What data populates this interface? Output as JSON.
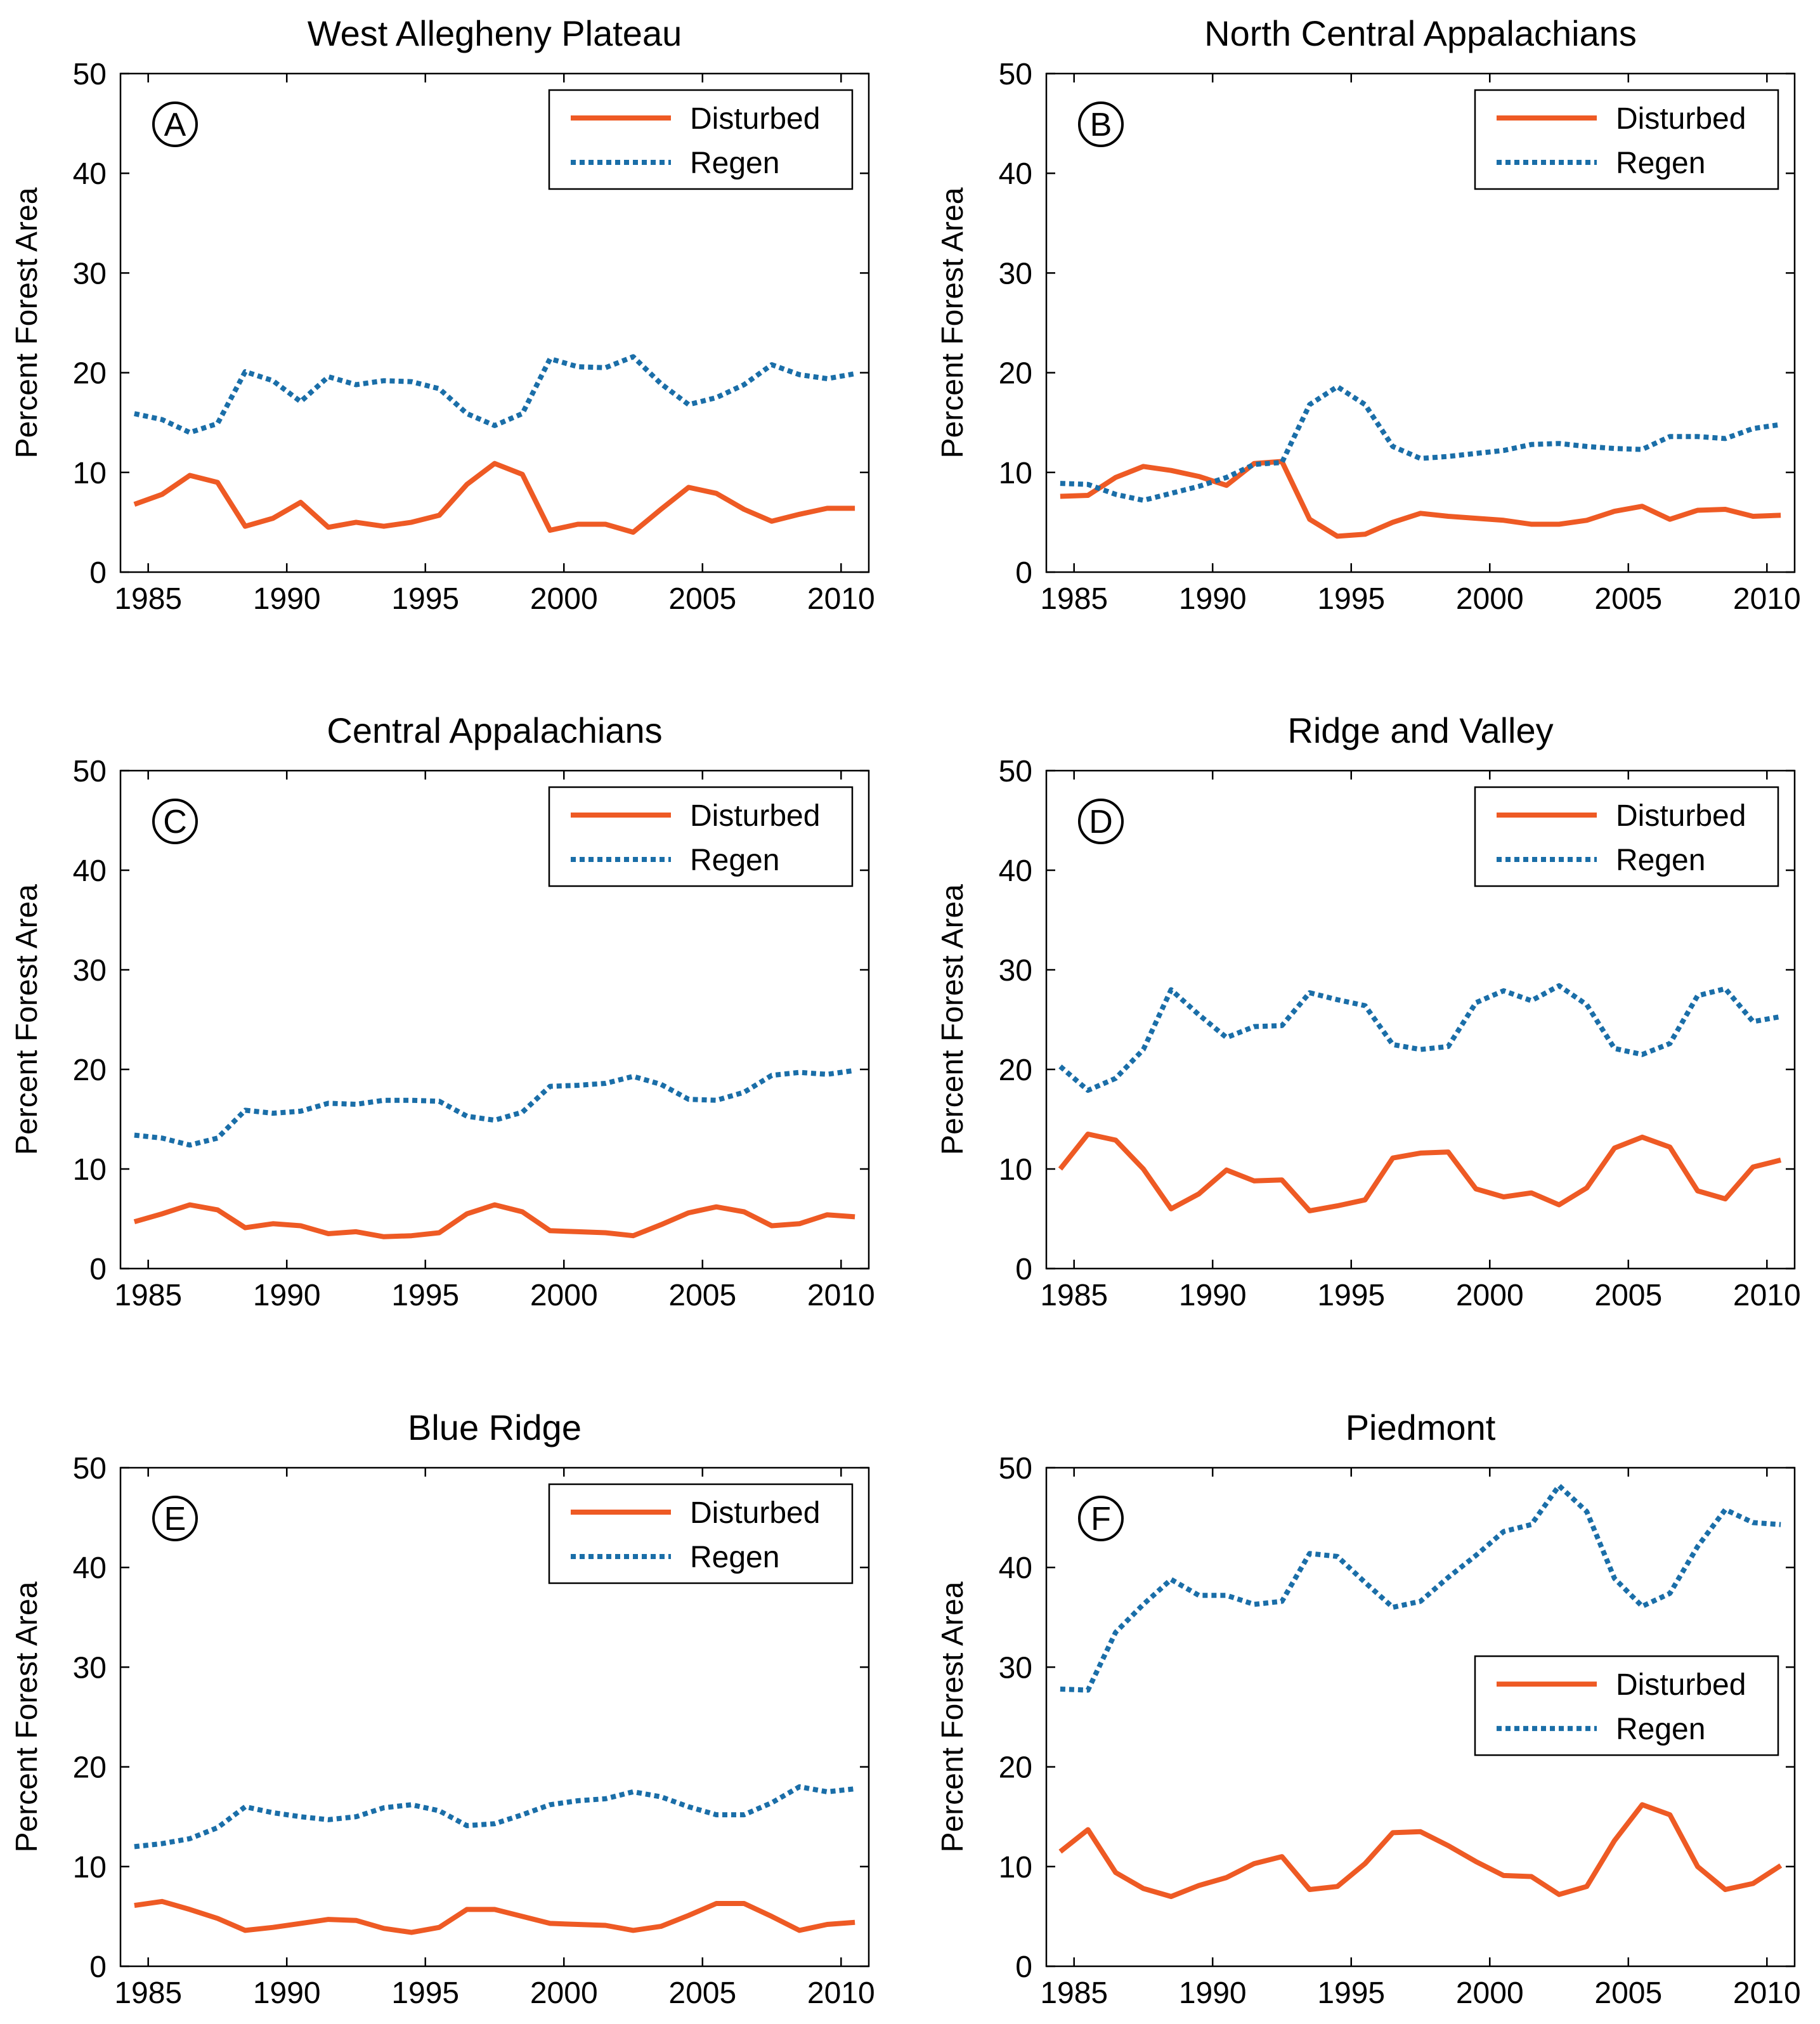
{
  "colors": {
    "disturbed": "#ee5a24",
    "regen": "#1a6ea8"
  },
  "chart_data": [
    {
      "type": "line",
      "panel": "A",
      "title": "West Allegheny Plateau",
      "ylabel": "Percent Forest Area",
      "xlim": [
        1984,
        2011
      ],
      "ylim": [
        0,
        50
      ],
      "xticks": [
        1985,
        1990,
        1995,
        2000,
        2005,
        2010
      ],
      "yticks": [
        0,
        10,
        20,
        30,
        40,
        50
      ],
      "legend": {
        "position": "top-right",
        "entries": [
          "Disturbed",
          "Regen"
        ]
      },
      "x": [
        1984.5,
        1985.5,
        1986.5,
        1987.5,
        1988.5,
        1989.5,
        1990.5,
        1991.5,
        1992.5,
        1993.5,
        1994.5,
        1995.5,
        1996.5,
        1997.5,
        1998.5,
        1999.5,
        2000.5,
        2001.5,
        2002.5,
        2003.5,
        2004.5,
        2005.5,
        2006.5,
        2007.5,
        2008.5,
        2009.5,
        2010.5
      ],
      "series": [
        {
          "name": "Disturbed",
          "style": "solid",
          "values": [
            6.8,
            7.8,
            9.7,
            9.0,
            4.6,
            5.4,
            7.0,
            4.5,
            5.0,
            4.6,
            5.0,
            5.7,
            8.8,
            10.9,
            9.8,
            4.2,
            4.8,
            4.8,
            4.0,
            6.3,
            8.5,
            7.9,
            6.3,
            5.1,
            5.8,
            6.4,
            6.4
          ]
        },
        {
          "name": "Regen",
          "style": "dotted",
          "values": [
            15.9,
            15.3,
            14.0,
            14.9,
            20.1,
            19.2,
            17.1,
            19.6,
            18.8,
            19.2,
            19.1,
            18.4,
            15.9,
            14.7,
            15.9,
            21.4,
            20.6,
            20.5,
            21.6,
            18.9,
            16.8,
            17.5,
            18.8,
            20.8,
            19.8,
            19.4,
            19.9
          ]
        }
      ]
    },
    {
      "type": "line",
      "panel": "B",
      "title": "North Central Appalachians",
      "ylabel": "Percent Forest Area",
      "xlim": [
        1984,
        2011
      ],
      "ylim": [
        0,
        50
      ],
      "xticks": [
        1985,
        1990,
        1995,
        2000,
        2005,
        2010
      ],
      "yticks": [
        0,
        10,
        20,
        30,
        40,
        50
      ],
      "legend": {
        "position": "top-right",
        "entries": [
          "Disturbed",
          "Regen"
        ]
      },
      "x": [
        1984.5,
        1985.5,
        1986.5,
        1987.5,
        1988.5,
        1989.5,
        1990.5,
        1991.5,
        1992.5,
        1993.5,
        1994.5,
        1995.5,
        1996.5,
        1997.5,
        1998.5,
        1999.5,
        2000.5,
        2001.5,
        2002.5,
        2003.5,
        2004.5,
        2005.5,
        2006.5,
        2007.5,
        2008.5,
        2009.5,
        2010.5
      ],
      "series": [
        {
          "name": "Disturbed",
          "style": "solid",
          "values": [
            7.6,
            7.7,
            9.5,
            10.6,
            10.2,
            9.6,
            8.7,
            10.9,
            11.1,
            5.3,
            3.6,
            3.8,
            5.0,
            5.9,
            5.6,
            5.4,
            5.2,
            4.8,
            4.8,
            5.2,
            6.1,
            6.6,
            5.3,
            6.2,
            6.3,
            5.6,
            5.7
          ]
        },
        {
          "name": "Regen",
          "style": "dotted",
          "values": [
            8.9,
            8.8,
            7.8,
            7.2,
            7.9,
            8.6,
            9.5,
            10.8,
            11.0,
            16.8,
            18.6,
            16.8,
            12.6,
            11.4,
            11.6,
            11.9,
            12.2,
            12.8,
            12.9,
            12.6,
            12.4,
            12.3,
            13.6,
            13.6,
            13.4,
            14.4,
            14.8
          ]
        }
      ]
    },
    {
      "type": "line",
      "panel": "C",
      "title": "Central Appalachians",
      "ylabel": "Percent Forest Area",
      "xlim": [
        1984,
        2011
      ],
      "ylim": [
        0,
        50
      ],
      "xticks": [
        1985,
        1990,
        1995,
        2000,
        2005,
        2010
      ],
      "yticks": [
        0,
        10,
        20,
        30,
        40,
        50
      ],
      "legend": {
        "position": "top-right",
        "entries": [
          "Disturbed",
          "Regen"
        ]
      },
      "x": [
        1984.5,
        1985.5,
        1986.5,
        1987.5,
        1988.5,
        1989.5,
        1990.5,
        1991.5,
        1992.5,
        1993.5,
        1994.5,
        1995.5,
        1996.5,
        1997.5,
        1998.5,
        1999.5,
        2000.5,
        2001.5,
        2002.5,
        2003.5,
        2004.5,
        2005.5,
        2006.5,
        2007.5,
        2008.5,
        2009.5,
        2010.5
      ],
      "series": [
        {
          "name": "Disturbed",
          "style": "solid",
          "values": [
            4.7,
            5.5,
            6.4,
            5.9,
            4.1,
            4.5,
            4.3,
            3.5,
            3.7,
            3.2,
            3.3,
            3.6,
            5.5,
            6.4,
            5.7,
            3.8,
            3.7,
            3.6,
            3.3,
            4.4,
            5.6,
            6.2,
            5.7,
            4.3,
            4.5,
            5.4,
            5.2
          ]
        },
        {
          "name": "Regen",
          "style": "dotted",
          "values": [
            13.4,
            13.1,
            12.4,
            13.1,
            15.9,
            15.6,
            15.8,
            16.6,
            16.5,
            16.9,
            16.9,
            16.8,
            15.3,
            14.9,
            15.7,
            18.3,
            18.4,
            18.6,
            19.3,
            18.5,
            17.0,
            16.9,
            17.7,
            19.4,
            19.7,
            19.5,
            19.9
          ]
        }
      ]
    },
    {
      "type": "line",
      "panel": "D",
      "title": "Ridge and Valley",
      "ylabel": "Percent Forest Area",
      "xlim": [
        1984,
        2011
      ],
      "ylim": [
        0,
        50
      ],
      "xticks": [
        1985,
        1990,
        1995,
        2000,
        2005,
        2010
      ],
      "yticks": [
        0,
        10,
        20,
        30,
        40,
        50
      ],
      "legend": {
        "position": "top-right",
        "entries": [
          "Disturbed",
          "Regen"
        ]
      },
      "x": [
        1984.5,
        1985.5,
        1986.5,
        1987.5,
        1988.5,
        1989.5,
        1990.5,
        1991.5,
        1992.5,
        1993.5,
        1994.5,
        1995.5,
        1996.5,
        1997.5,
        1998.5,
        1999.5,
        2000.5,
        2001.5,
        2002.5,
        2003.5,
        2004.5,
        2005.5,
        2006.5,
        2007.5,
        2008.5,
        2009.5,
        2010.5
      ],
      "series": [
        {
          "name": "Disturbed",
          "style": "solid",
          "values": [
            10.0,
            13.5,
            12.9,
            10.0,
            6.0,
            7.5,
            9.9,
            8.8,
            8.9,
            5.8,
            6.3,
            6.9,
            11.1,
            11.6,
            11.7,
            8.0,
            7.2,
            7.6,
            6.4,
            8.1,
            12.1,
            13.2,
            12.2,
            7.8,
            7.0,
            10.2,
            10.9
          ]
        },
        {
          "name": "Regen",
          "style": "dotted",
          "values": [
            20.3,
            17.9,
            19.1,
            22.0,
            28.0,
            25.5,
            23.2,
            24.3,
            24.4,
            27.7,
            27.0,
            26.4,
            22.5,
            22.0,
            22.3,
            26.7,
            27.9,
            26.9,
            28.4,
            26.5,
            22.1,
            21.5,
            22.6,
            27.4,
            28.1,
            24.8,
            25.3
          ]
        }
      ]
    },
    {
      "type": "line",
      "panel": "E",
      "title": "Blue Ridge",
      "ylabel": "Percent Forest Area",
      "xlim": [
        1984,
        2011
      ],
      "ylim": [
        0,
        50
      ],
      "xticks": [
        1985,
        1990,
        1995,
        2000,
        2005,
        2010
      ],
      "yticks": [
        0,
        10,
        20,
        30,
        40,
        50
      ],
      "legend": {
        "position": "top-right",
        "entries": [
          "Disturbed",
          "Regen"
        ]
      },
      "x": [
        1984.5,
        1985.5,
        1986.5,
        1987.5,
        1988.5,
        1989.5,
        1990.5,
        1991.5,
        1992.5,
        1993.5,
        1994.5,
        1995.5,
        1996.5,
        1997.5,
        1998.5,
        1999.5,
        2000.5,
        2001.5,
        2002.5,
        2003.5,
        2004.5,
        2005.5,
        2006.5,
        2007.5,
        2008.5,
        2009.5,
        2010.5
      ],
      "series": [
        {
          "name": "Disturbed",
          "style": "solid",
          "values": [
            6.1,
            6.5,
            5.7,
            4.8,
            3.6,
            3.9,
            4.3,
            4.7,
            4.6,
            3.8,
            3.4,
            3.9,
            5.7,
            5.7,
            5.0,
            4.3,
            4.2,
            4.1,
            3.6,
            4.0,
            5.1,
            6.3,
            6.3,
            5.0,
            3.6,
            4.2,
            4.4
          ]
        },
        {
          "name": "Regen",
          "style": "dotted",
          "values": [
            12.0,
            12.3,
            12.8,
            13.9,
            16.0,
            15.4,
            15.0,
            14.7,
            15.0,
            15.9,
            16.2,
            15.6,
            14.1,
            14.3,
            15.2,
            16.2,
            16.6,
            16.8,
            17.5,
            17.0,
            16.0,
            15.2,
            15.2,
            16.4,
            18.0,
            17.5,
            17.8
          ]
        }
      ]
    },
    {
      "type": "line",
      "panel": "F",
      "title": "Piedmont",
      "ylabel": "Percent Forest Area",
      "xlim": [
        1984,
        2011
      ],
      "ylim": [
        0,
        50
      ],
      "xticks": [
        1985,
        1990,
        1995,
        2000,
        2005,
        2010
      ],
      "yticks": [
        0,
        10,
        20,
        30,
        40,
        50
      ],
      "legend": {
        "position": "right",
        "entries": [
          "Disturbed",
          "Regen"
        ]
      },
      "x": [
        1984.5,
        1985.5,
        1986.5,
        1987.5,
        1988.5,
        1989.5,
        1990.5,
        1991.5,
        1992.5,
        1993.5,
        1994.5,
        1995.5,
        1996.5,
        1997.5,
        1998.5,
        1999.5,
        2000.5,
        2001.5,
        2002.5,
        2003.5,
        2004.5,
        2005.5,
        2006.5,
        2007.5,
        2008.5,
        2009.5,
        2010.5
      ],
      "series": [
        {
          "name": "Disturbed",
          "style": "solid",
          "values": [
            11.5,
            13.7,
            9.4,
            7.8,
            7.0,
            8.1,
            8.9,
            10.3,
            11.0,
            7.7,
            8.0,
            10.3,
            13.4,
            13.5,
            12.1,
            10.5,
            9.1,
            9.0,
            7.2,
            8.0,
            12.6,
            16.2,
            15.2,
            10.0,
            7.7,
            8.3,
            10.1
          ]
        },
        {
          "name": "Regen",
          "style": "dotted",
          "values": [
            27.8,
            27.7,
            33.5,
            36.3,
            38.8,
            37.2,
            37.2,
            36.3,
            36.6,
            41.4,
            41.1,
            38.5,
            36.0,
            36.6,
            39.0,
            41.2,
            43.6,
            44.3,
            48.2,
            45.6,
            38.9,
            36.1,
            37.4,
            42.1,
            45.8,
            44.5,
            44.3
          ]
        }
      ]
    }
  ]
}
